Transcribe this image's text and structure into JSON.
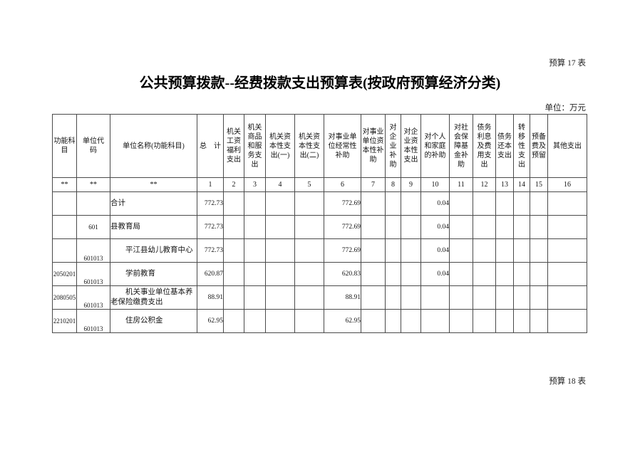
{
  "page": {
    "sheet_label_top": "预算 17 表",
    "title": "公共预算拨款--经费拨款支出预算表(按政府预算经济分类)",
    "unit_note": "单位：万元",
    "sheet_label_bottom": "预算 18 表"
  },
  "table": {
    "columns": [
      {
        "key": "fn",
        "label": "功能科\n目",
        "num": "**"
      },
      {
        "key": "code",
        "label": "单位代\n码",
        "num": "**"
      },
      {
        "key": "name",
        "label": "单位名称(功能科目)",
        "num": "**"
      },
      {
        "key": "c1",
        "label": "总　计",
        "num": "1"
      },
      {
        "key": "c2",
        "label": "机关\n工资\n福利\n支出",
        "num": "2"
      },
      {
        "key": "c3",
        "label": "机关\n商品\n和服\n务支\n出",
        "num": "3"
      },
      {
        "key": "c4",
        "label": "机关资\n本性支\n出(一)",
        "num": "4"
      },
      {
        "key": "c5",
        "label": "机关资\n本性支\n出(二)",
        "num": "5"
      },
      {
        "key": "c6",
        "label": "对事业单\n位经常性\n补助",
        "num": "6"
      },
      {
        "key": "c7",
        "label": "对事业\n单位资\n本性补\n助",
        "num": "7"
      },
      {
        "key": "c8",
        "label": "对\n企\n业\n补\n助",
        "num": "8"
      },
      {
        "key": "c9",
        "label": "对企\n业资\n本性\n支出",
        "num": "9"
      },
      {
        "key": "c10",
        "label": "对个人\n和家庭\n的补助",
        "num": "10"
      },
      {
        "key": "c11",
        "label": "对社\n会保\n障基\n金补\n助",
        "num": "11"
      },
      {
        "key": "c12",
        "label": "债务\n利息\n及费\n用支\n出",
        "num": "12"
      },
      {
        "key": "c13",
        "label": "债务\n还本\n支出",
        "num": "13"
      },
      {
        "key": "c14",
        "label": "转\n移\n性\n支\n出",
        "num": "14"
      },
      {
        "key": "c15",
        "label": "预备\n费及\n预留",
        "num": "15"
      },
      {
        "key": "c16",
        "label": "其他支出",
        "num": "16"
      }
    ],
    "rows": [
      {
        "fn": "",
        "code": "",
        "name": "合计",
        "indent": false,
        "code_bottom": false,
        "values": [
          "772.73",
          "",
          "",
          "",
          "",
          "772.69",
          "",
          "",
          "",
          "0.04",
          "",
          "",
          "",
          "",
          "",
          ""
        ]
      },
      {
        "fn": "",
        "code": "601",
        "name": "县教育局",
        "indent": false,
        "code_bottom": false,
        "values": [
          "772.73",
          "",
          "",
          "",
          "",
          "772.69",
          "",
          "",
          "",
          "0.04",
          "",
          "",
          "",
          "",
          "",
          ""
        ]
      },
      {
        "fn": "",
        "code": "601013",
        "name": "平江县幼儿教育中心",
        "indent": true,
        "code_bottom": true,
        "values": [
          "772.73",
          "",
          "",
          "",
          "",
          "772.69",
          "",
          "",
          "",
          "0.04",
          "",
          "",
          "",
          "",
          "",
          ""
        ]
      },
      {
        "fn": "2050201",
        "code": "601013",
        "name": "学前教育",
        "indent": true,
        "code_bottom": true,
        "values": [
          "620.87",
          "",
          "",
          "",
          "",
          "620.83",
          "",
          "",
          "",
          "0.04",
          "",
          "",
          "",
          "",
          "",
          ""
        ]
      },
      {
        "fn": "2080505",
        "code": "601013",
        "name": "机关事业单位基本养老保险缴费支出",
        "indent": true,
        "code_bottom": true,
        "values": [
          "88.91",
          "",
          "",
          "",
          "",
          "88.91",
          "",
          "",
          "",
          "",
          "",
          "",
          "",
          "",
          "",
          ""
        ]
      },
      {
        "fn": "2210201",
        "code": "601013",
        "name": "住房公积金",
        "indent": true,
        "code_bottom": true,
        "values": [
          "62.95",
          "",
          "",
          "",
          "",
          "62.95",
          "",
          "",
          "",
          "",
          "",
          "",
          "",
          "",
          "",
          ""
        ]
      }
    ]
  }
}
